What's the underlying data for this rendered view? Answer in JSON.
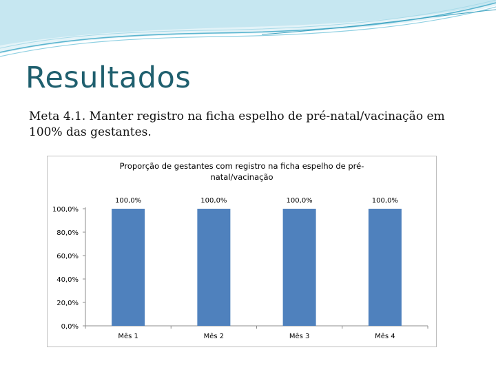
{
  "slide": {
    "title": "Resultados",
    "body": "Meta 4.1. Manter registro na ficha espelho de pré-natal/vacinação em 100% das gestantes."
  },
  "colors": {
    "bar": "#4f81bd",
    "title": "#1f5f6e",
    "wave": "#5bb5cf"
  },
  "chart_data": {
    "type": "bar",
    "title_lines": [
      "Proporção de gestantes com registro na ficha espelho de pré-",
      "natal/vacinação"
    ],
    "categories": [
      "Mês 1",
      "Mês 2",
      "Mês 3",
      "Mês 4"
    ],
    "values": [
      100,
      100,
      100,
      100
    ],
    "value_labels": [
      "100,0%",
      "100,0%",
      "100,0%",
      "100,0%"
    ],
    "y_ticks": [
      0,
      20,
      40,
      60,
      80,
      100
    ],
    "y_tick_labels": [
      "0,0%",
      "20,0%",
      "40,0%",
      "60,0%",
      "80,0%",
      "100,0%"
    ],
    "ylim": [
      0,
      100
    ],
    "grid": false,
    "legend": "none"
  }
}
